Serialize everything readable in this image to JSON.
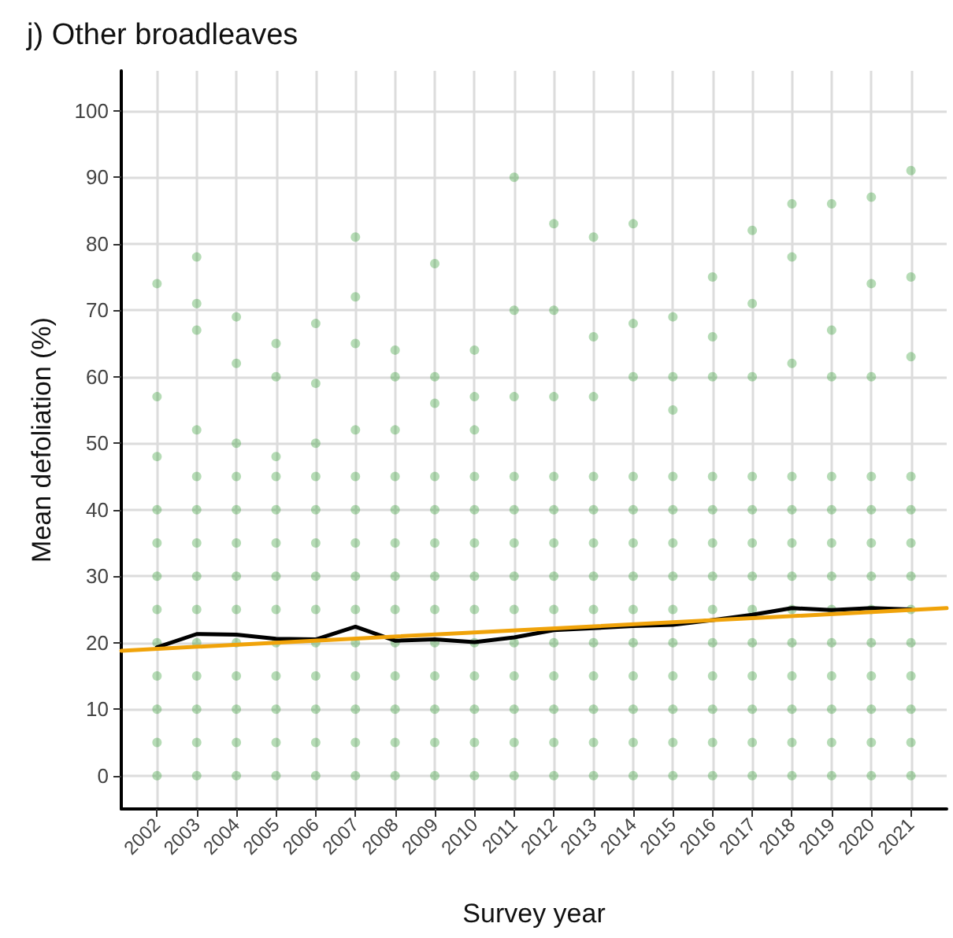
{
  "chart_data": {
    "type": "scatter",
    "title": "j) Other broadleaves",
    "xlabel": "Survey year",
    "ylabel": "Mean defoliation (%)",
    "xlim": [
      2001.1,
      2021.9
    ],
    "ylim": [
      -5,
      106
    ],
    "xticks": [
      2002,
      2003,
      2004,
      2005,
      2006,
      2007,
      2008,
      2009,
      2010,
      2011,
      2012,
      2013,
      2014,
      2015,
      2016,
      2017,
      2018,
      2019,
      2020,
      2021
    ],
    "yticks": [
      0,
      10,
      20,
      30,
      40,
      50,
      60,
      70,
      80,
      90,
      100
    ],
    "grid": true,
    "marker": "circle",
    "series": [
      {
        "color": "#2e9a2e",
        "x": [
          2002,
          2002,
          2002,
          2002,
          2002,
          2002,
          2002,
          2002,
          2002,
          2002,
          2002,
          2002,
          2003,
          2003,
          2003,
          2003,
          2003,
          2003,
          2003,
          2003,
          2003,
          2003,
          2003,
          2003,
          2003,
          2003,
          2004,
          2004,
          2004,
          2004,
          2004,
          2004,
          2004,
          2004,
          2004,
          2004,
          2004,
          2004,
          2004,
          2005,
          2005,
          2005,
          2005,
          2005,
          2005,
          2005,
          2005,
          2005,
          2005,
          2005,
          2005,
          2005,
          2006,
          2006,
          2006,
          2006,
          2006,
          2006,
          2006,
          2006,
          2006,
          2006,
          2006,
          2006,
          2006,
          2007,
          2007,
          2007,
          2007,
          2007,
          2007,
          2007,
          2007,
          2007,
          2007,
          2007,
          2007,
          2007,
          2007,
          2008,
          2008,
          2008,
          2008,
          2008,
          2008,
          2008,
          2008,
          2008,
          2008,
          2008,
          2008,
          2008,
          2009,
          2009,
          2009,
          2009,
          2009,
          2009,
          2009,
          2009,
          2009,
          2009,
          2009,
          2009,
          2009,
          2010,
          2010,
          2010,
          2010,
          2010,
          2010,
          2010,
          2010,
          2010,
          2010,
          2010,
          2010,
          2010,
          2011,
          2011,
          2011,
          2011,
          2011,
          2011,
          2011,
          2011,
          2011,
          2011,
          2011,
          2011,
          2011,
          2012,
          2012,
          2012,
          2012,
          2012,
          2012,
          2012,
          2012,
          2012,
          2012,
          2012,
          2012,
          2012,
          2013,
          2013,
          2013,
          2013,
          2013,
          2013,
          2013,
          2013,
          2013,
          2013,
          2013,
          2013,
          2013,
          2014,
          2014,
          2014,
          2014,
          2014,
          2014,
          2014,
          2014,
          2014,
          2014,
          2014,
          2014,
          2014,
          2015,
          2015,
          2015,
          2015,
          2015,
          2015,
          2015,
          2015,
          2015,
          2015,
          2015,
          2015,
          2015,
          2016,
          2016,
          2016,
          2016,
          2016,
          2016,
          2016,
          2016,
          2016,
          2016,
          2016,
          2016,
          2016,
          2017,
          2017,
          2017,
          2017,
          2017,
          2017,
          2017,
          2017,
          2017,
          2017,
          2017,
          2017,
          2017,
          2018,
          2018,
          2018,
          2018,
          2018,
          2018,
          2018,
          2018,
          2018,
          2018,
          2018,
          2018,
          2018,
          2019,
          2019,
          2019,
          2019,
          2019,
          2019,
          2019,
          2019,
          2019,
          2019,
          2019,
          2019,
          2019,
          2020,
          2020,
          2020,
          2020,
          2020,
          2020,
          2020,
          2020,
          2020,
          2020,
          2020,
          2020,
          2020,
          2021,
          2021,
          2021,
          2021,
          2021,
          2021,
          2021,
          2021,
          2021,
          2021,
          2021,
          2021,
          2021
        ],
        "values": [
          0,
          5,
          10,
          15,
          20,
          25,
          30,
          35,
          40,
          48,
          57,
          74,
          0,
          5,
          10,
          15,
          20,
          25,
          30,
          35,
          40,
          45,
          52,
          67,
          71,
          78,
          0,
          5,
          10,
          15,
          20,
          25,
          30,
          35,
          40,
          45,
          50,
          62,
          69,
          0,
          5,
          10,
          15,
          20,
          25,
          30,
          35,
          40,
          45,
          48,
          60,
          65,
          0,
          5,
          10,
          15,
          20,
          25,
          30,
          35,
          40,
          45,
          50,
          59,
          68,
          0,
          5,
          10,
          15,
          20,
          25,
          30,
          35,
          40,
          45,
          52,
          65,
          72,
          81,
          0,
          5,
          10,
          15,
          20,
          25,
          30,
          35,
          40,
          45,
          52,
          60,
          64,
          0,
          5,
          10,
          15,
          20,
          25,
          30,
          35,
          40,
          45,
          56,
          60,
          77,
          0,
          5,
          10,
          15,
          20,
          25,
          30,
          35,
          40,
          45,
          52,
          57,
          64,
          0,
          5,
          10,
          15,
          20,
          25,
          30,
          35,
          40,
          45,
          57,
          70,
          90,
          0,
          5,
          10,
          15,
          20,
          25,
          30,
          35,
          40,
          45,
          57,
          70,
          83,
          0,
          5,
          10,
          15,
          20,
          25,
          30,
          35,
          40,
          45,
          57,
          66,
          81,
          0,
          5,
          10,
          15,
          20,
          25,
          30,
          35,
          40,
          45,
          60,
          68,
          83,
          0,
          5,
          10,
          15,
          20,
          25,
          30,
          35,
          40,
          45,
          55,
          60,
          69,
          0,
          5,
          10,
          15,
          20,
          25,
          30,
          35,
          40,
          45,
          60,
          66,
          75,
          0,
          5,
          10,
          15,
          20,
          25,
          30,
          35,
          40,
          45,
          60,
          71,
          82,
          0,
          5,
          10,
          15,
          20,
          25,
          30,
          35,
          40,
          45,
          62,
          78,
          86,
          0,
          5,
          10,
          15,
          20,
          25,
          30,
          35,
          40,
          45,
          60,
          67,
          86,
          0,
          5,
          10,
          15,
          20,
          25,
          30,
          35,
          40,
          45,
          60,
          74,
          87,
          0,
          5,
          10,
          15,
          20,
          25,
          30,
          35,
          40,
          45,
          63,
          75,
          91
        ]
      },
      {
        "type": "line",
        "color": "#000000",
        "marker": "none",
        "x": [
          2002,
          2003,
          2004,
          2005,
          2006,
          2007,
          2008,
          2009,
          2010,
          2011,
          2012,
          2013,
          2014,
          2015,
          2016,
          2017,
          2018,
          2019,
          2020,
          2021
        ],
        "values": [
          19.3,
          21.3,
          21.2,
          20.6,
          20.5,
          22.4,
          20.3,
          20.5,
          20.1,
          20.8,
          21.9,
          22.2,
          22.5,
          22.7,
          23.4,
          24.2,
          25.2,
          24.9,
          25.2,
          25.0
        ]
      },
      {
        "type": "line",
        "color": "#f0a30a",
        "marker": "none",
        "x": [
          2001.1,
          2021.9
        ],
        "values": [
          18.8,
          25.2
        ]
      }
    ]
  }
}
